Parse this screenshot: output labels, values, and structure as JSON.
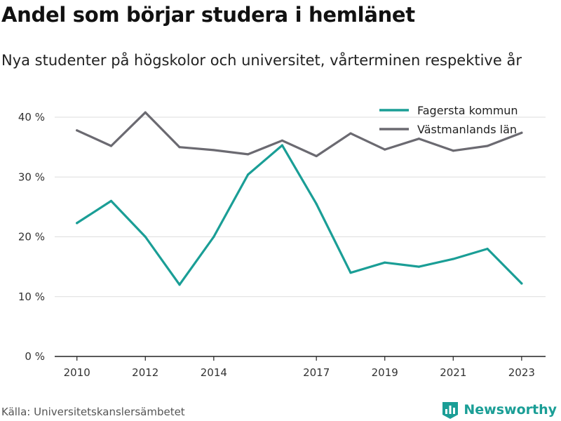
{
  "header": {
    "title": "Andel som börjar studera i hemlänet",
    "subtitle": "Nya studenter på högskolor och universitet, vårterminen respektive år"
  },
  "footer": {
    "source": "Källa: Universitetskanslersämbetet",
    "brand": "Newsworthy",
    "brand_icon": "bar-chart-icon"
  },
  "colors": {
    "fagersta": "#1a9e96",
    "vastmanland": "#6b6a71",
    "grid": "#dddddd",
    "brand": "#1a9e96"
  },
  "chart_data": {
    "type": "line",
    "x": [
      2010,
      2011,
      2012,
      2013,
      2014,
      2015,
      2016,
      2017,
      2018,
      2019,
      2020,
      2021,
      2022,
      2023
    ],
    "x_ticks": [
      2010,
      2012,
      2014,
      2017,
      2019,
      2021,
      2023
    ],
    "xlim": [
      2009.35,
      2023.7
    ],
    "y_ticks": [
      0,
      10,
      20,
      30,
      40
    ],
    "y_tick_labels": [
      "0 %",
      "10 %",
      "20 %",
      "30 %",
      "40 %"
    ],
    "ylim": [
      0,
      42
    ],
    "grid": true,
    "legend_position": "top-right",
    "series": [
      {
        "name": "Fagersta kommun",
        "color": "#1a9e96",
        "values": [
          22.3,
          26.0,
          20.0,
          12.0,
          20.0,
          30.4,
          35.3,
          25.5,
          14.0,
          15.7,
          15.0,
          16.3,
          18.0,
          12.2
        ]
      },
      {
        "name": "Västmanlands län",
        "color": "#6b6a71",
        "values": [
          37.8,
          35.2,
          40.8,
          35.0,
          34.5,
          33.8,
          36.1,
          33.5,
          37.3,
          34.6,
          36.4,
          34.4,
          35.2,
          37.4
        ]
      }
    ]
  }
}
